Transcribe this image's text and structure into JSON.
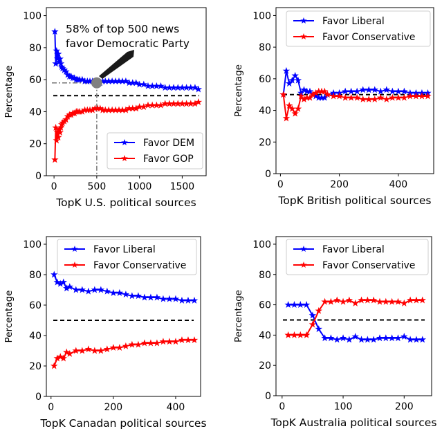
{
  "colors": {
    "dem": "#0000ff",
    "gop": "#ff0000",
    "ref": "#000000",
    "marker_gray": "#808080"
  },
  "chart_data": [
    {
      "type": "line",
      "xlabel": "TopK U.S. political sources",
      "ylabel": "Percentage",
      "xlim": [
        -90,
        1780
      ],
      "ylim": [
        0,
        105
      ],
      "xticks": [
        0,
        500,
        1000,
        1500
      ],
      "yticks": [
        0,
        20,
        40,
        60,
        80,
        100
      ],
      "reference_line_y": 50,
      "legend_loc": "lower-right",
      "annotation": {
        "text_lines": [
          "58% of top 500 news",
          "favor Democratic Party"
        ],
        "point": [
          500,
          58
        ]
      },
      "series": [
        {
          "name": "Favor DEM",
          "color": "#0000ff",
          "x": [
            10,
            20,
            30,
            40,
            50,
            60,
            70,
            80,
            90,
            100,
            120,
            140,
            160,
            180,
            200,
            220,
            240,
            260,
            280,
            300,
            330,
            360,
            390,
            420,
            450,
            480,
            510,
            540,
            570,
            600,
            640,
            680,
            720,
            760,
            800,
            840,
            880,
            920,
            960,
            1000,
            1050,
            1100,
            1150,
            1200,
            1250,
            1300,
            1350,
            1400,
            1450,
            1500,
            1550,
            1600,
            1650,
            1690
          ],
          "y": [
            90,
            70,
            78,
            73,
            76,
            71,
            73,
            70,
            68,
            67,
            66,
            65,
            63,
            62,
            62,
            61,
            61,
            60,
            60,
            60,
            60,
            59,
            59,
            59,
            59,
            58,
            58,
            58,
            59,
            59,
            59,
            59,
            59,
            59,
            59,
            59,
            58,
            58,
            58,
            57,
            57,
            56,
            56,
            56,
            56,
            55,
            55,
            55,
            55,
            55,
            55,
            55,
            55,
            54
          ]
        },
        {
          "name": "Favor GOP",
          "color": "#ff0000",
          "x": [
            10,
            20,
            30,
            40,
            50,
            60,
            70,
            80,
            90,
            100,
            120,
            140,
            160,
            180,
            200,
            220,
            240,
            260,
            280,
            300,
            330,
            360,
            390,
            420,
            450,
            480,
            510,
            540,
            570,
            600,
            640,
            680,
            720,
            760,
            800,
            840,
            880,
            920,
            960,
            1000,
            1050,
            1100,
            1150,
            1200,
            1250,
            1300,
            1350,
            1400,
            1450,
            1500,
            1550,
            1600,
            1650,
            1690
          ],
          "y": [
            10,
            30,
            22,
            27,
            24,
            29,
            27,
            30,
            32,
            33,
            34,
            35,
            37,
            38,
            38,
            39,
            39,
            40,
            40,
            40,
            40,
            41,
            41,
            41,
            41,
            42,
            42,
            42,
            41,
            41,
            41,
            41,
            41,
            41,
            41,
            41,
            42,
            42,
            42,
            43,
            43,
            44,
            44,
            44,
            44,
            45,
            45,
            45,
            45,
            45,
            45,
            45,
            45,
            46
          ]
        }
      ]
    },
    {
      "type": "line",
      "xlabel": "TopK British political sources",
      "ylabel": "Percentage",
      "xlim": [
        -15,
        520
      ],
      "ylim": [
        0,
        105
      ],
      "xticks": [
        0,
        200,
        400
      ],
      "yticks": [
        0,
        20,
        40,
        60,
        80,
        100
      ],
      "reference_line_y": 50,
      "legend_loc": "upper-right",
      "series": [
        {
          "name": "Favor Liberal",
          "color": "#0000ff",
          "x": [
            10,
            20,
            30,
            40,
            50,
            60,
            70,
            80,
            90,
            100,
            110,
            120,
            130,
            140,
            150,
            160,
            180,
            200,
            220,
            240,
            260,
            280,
            300,
            320,
            340,
            360,
            380,
            400,
            420,
            440,
            460,
            480,
            500
          ],
          "y": [
            50,
            65,
            57,
            59,
            62,
            59,
            51,
            53,
            52,
            52,
            50,
            49,
            48,
            48,
            48,
            50,
            51,
            51,
            52,
            52,
            52,
            53,
            53,
            53,
            52,
            53,
            52,
            52,
            52,
            51,
            51,
            51,
            51
          ]
        },
        {
          "name": "Favor Conservative",
          "color": "#ff0000",
          "x": [
            10,
            20,
            30,
            40,
            50,
            60,
            70,
            80,
            90,
            100,
            110,
            120,
            130,
            140,
            150,
            160,
            180,
            200,
            220,
            240,
            260,
            280,
            300,
            320,
            340,
            360,
            380,
            400,
            420,
            440,
            460,
            480,
            500
          ],
          "y": [
            50,
            35,
            43,
            41,
            38,
            41,
            49,
            47,
            48,
            48,
            50,
            51,
            52,
            52,
            52,
            50,
            49,
            49,
            48,
            48,
            48,
            47,
            47,
            47,
            48,
            47,
            48,
            48,
            48,
            49,
            49,
            49,
            49
          ]
        }
      ]
    },
    {
      "type": "line",
      "xlabel": "TopK Canadan political sources",
      "ylabel": "Percentage",
      "xlim": [
        -15,
        480
      ],
      "ylim": [
        0,
        105
      ],
      "xticks": [
        0,
        200,
        400
      ],
      "yticks": [
        0,
        20,
        40,
        60,
        80,
        100
      ],
      "reference_line_y": 50,
      "legend_loc": "upper-right",
      "series": [
        {
          "name": "Favor Liberal",
          "color": "#0000ff",
          "x": [
            10,
            20,
            30,
            40,
            50,
            60,
            80,
            100,
            120,
            140,
            160,
            180,
            200,
            220,
            240,
            260,
            280,
            300,
            320,
            340,
            360,
            380,
            400,
            420,
            440,
            460
          ],
          "y": [
            80,
            75,
            74,
            75,
            71,
            72,
            70,
            70,
            69,
            70,
            70,
            69,
            68,
            68,
            67,
            66,
            66,
            65,
            65,
            65,
            64,
            64,
            64,
            63,
            63,
            63
          ]
        },
        {
          "name": "Favor Conservative",
          "color": "#ff0000",
          "x": [
            10,
            20,
            30,
            40,
            50,
            60,
            80,
            100,
            120,
            140,
            160,
            180,
            200,
            220,
            240,
            260,
            280,
            300,
            320,
            340,
            360,
            380,
            400,
            420,
            440,
            460
          ],
          "y": [
            20,
            25,
            26,
            25,
            29,
            28,
            30,
            30,
            31,
            30,
            30,
            31,
            32,
            32,
            33,
            34,
            34,
            35,
            35,
            35,
            36,
            36,
            36,
            37,
            37,
            37
          ]
        }
      ]
    },
    {
      "type": "line",
      "xlabel": "TopK Australia political sources",
      "ylabel": "Percentage",
      "xlim": [
        -10,
        245
      ],
      "ylim": [
        0,
        105
      ],
      "xticks": [
        0,
        100,
        200
      ],
      "yticks": [
        0,
        20,
        40,
        60,
        80,
        100
      ],
      "reference_line_y": 50,
      "legend_loc": "upper-right",
      "series": [
        {
          "name": "Favor Liberal",
          "color": "#0000ff",
          "x": [
            10,
            20,
            30,
            40,
            50,
            60,
            70,
            80,
            90,
            100,
            110,
            120,
            130,
            140,
            150,
            160,
            170,
            180,
            190,
            200,
            210,
            220,
            230
          ],
          "y": [
            60,
            60,
            60,
            60,
            53,
            44,
            38,
            38,
            37,
            38,
            37,
            39,
            37,
            37,
            37,
            38,
            38,
            38,
            38,
            39,
            37,
            37,
            37
          ]
        },
        {
          "name": "Favor Conservative",
          "color": "#ff0000",
          "x": [
            10,
            20,
            30,
            40,
            50,
            60,
            70,
            80,
            90,
            100,
            110,
            120,
            130,
            140,
            150,
            160,
            170,
            180,
            190,
            200,
            210,
            220,
            230
          ],
          "y": [
            40,
            40,
            40,
            40,
            47,
            56,
            62,
            62,
            63,
            62,
            63,
            61,
            63,
            63,
            63,
            62,
            62,
            62,
            62,
            61,
            63,
            63,
            63
          ]
        }
      ]
    }
  ]
}
